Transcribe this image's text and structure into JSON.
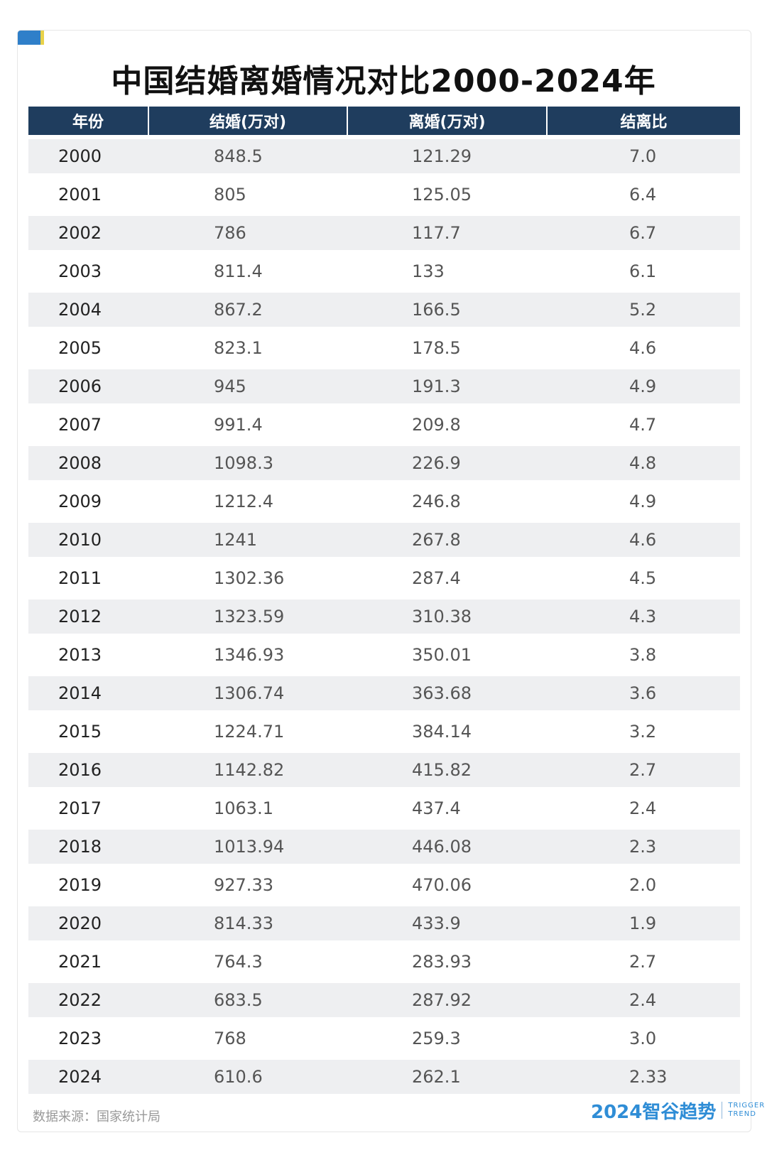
{
  "title": "中国结婚离婚情况对比2000-2024年",
  "table": {
    "headers": [
      "年份",
      "结婚(万对)",
      "离婚(万对)",
      "结离比"
    ],
    "rows": [
      [
        "2000",
        "848.5",
        "121.29",
        "7.0"
      ],
      [
        "2001",
        "805",
        "125.05",
        "6.4"
      ],
      [
        "2002",
        "786",
        "117.7",
        "6.7"
      ],
      [
        "2003",
        "811.4",
        "133",
        "6.1"
      ],
      [
        "2004",
        "867.2",
        "166.5",
        "5.2"
      ],
      [
        "2005",
        "823.1",
        "178.5",
        "4.6"
      ],
      [
        "2006",
        "945",
        "191.3",
        "4.9"
      ],
      [
        "2007",
        "991.4",
        "209.8",
        "4.7"
      ],
      [
        "2008",
        "1098.3",
        "226.9",
        "4.8"
      ],
      [
        "2009",
        "1212.4",
        "246.8",
        "4.9"
      ],
      [
        "2010",
        "1241",
        "267.8",
        "4.6"
      ],
      [
        "2011",
        "1302.36",
        "287.4",
        "4.5"
      ],
      [
        "2012",
        "1323.59",
        "310.38",
        "4.3"
      ],
      [
        "2013",
        "1346.93",
        "350.01",
        "3.8"
      ],
      [
        "2014",
        "1306.74",
        "363.68",
        "3.6"
      ],
      [
        "2015",
        "1224.71",
        "384.14",
        "3.2"
      ],
      [
        "2016",
        "1142.82",
        "415.82",
        "2.7"
      ],
      [
        "2017",
        "1063.1",
        "437.4",
        "2.4"
      ],
      [
        "2018",
        "1013.94",
        "446.08",
        "2.3"
      ],
      [
        "2019",
        "927.33",
        "470.06",
        "2.0"
      ],
      [
        "2020",
        "814.33",
        "433.9",
        "1.9"
      ],
      [
        "2021",
        "764.3",
        "283.93",
        "2.7"
      ],
      [
        "2022",
        "683.5",
        "287.92",
        "2.4"
      ],
      [
        "2023",
        "768",
        "259.3",
        "3.0"
      ],
      [
        "2024",
        "610.6",
        "262.1",
        "2.33"
      ]
    ]
  },
  "source": "数据来源：国家统计局",
  "brand": {
    "name": "2024智谷趋势",
    "en_line1": "TRIGGER",
    "en_line2": "TREND"
  },
  "colors": {
    "header_bg": "#1f3d5e",
    "row_shade": "#eeeff1",
    "brand": "#2f8dd6",
    "accent_blue": "#2f7fc9",
    "accent_yellow": "#e8d24a"
  }
}
